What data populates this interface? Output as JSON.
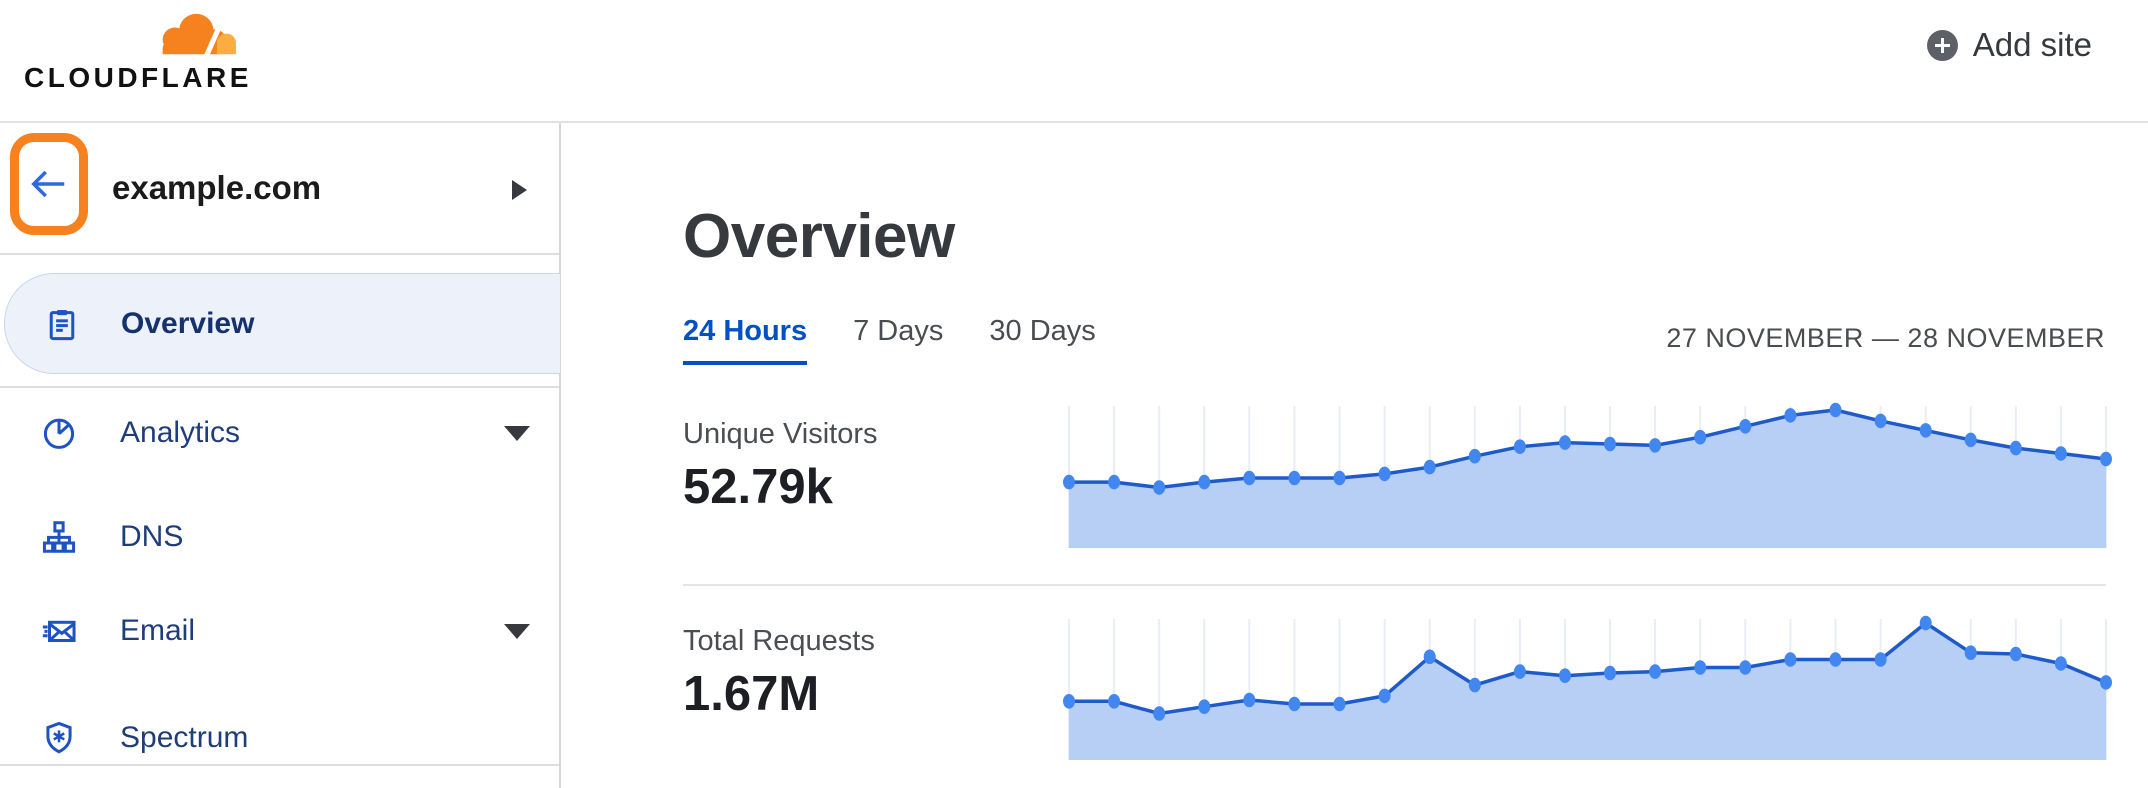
{
  "header": {
    "logo_text": "CLOUDFLARE",
    "add_site_label": "Add site"
  },
  "sidebar": {
    "site_name": "example.com",
    "items": [
      {
        "label": "Overview",
        "icon": "clipboard-icon",
        "selected": true,
        "expandable": false
      },
      {
        "label": "Analytics",
        "icon": "pie-chart-icon",
        "selected": false,
        "expandable": true
      },
      {
        "label": "DNS",
        "icon": "sitemap-icon",
        "selected": false,
        "expandable": false
      },
      {
        "label": "Email",
        "icon": "email-icon",
        "selected": false,
        "expandable": true
      },
      {
        "label": "Spectrum",
        "icon": "shield-icon",
        "selected": false,
        "expandable": false
      }
    ]
  },
  "main": {
    "title": "Overview",
    "tabs": [
      {
        "label": "24 Hours",
        "active": true
      },
      {
        "label": "7 Days",
        "active": false
      },
      {
        "label": "30 Days",
        "active": false
      }
    ],
    "date_range": "27 NOVEMBER — 28 NOVEMBER",
    "metrics": [
      {
        "label": "Unique Visitors",
        "value": "52.79k"
      },
      {
        "label": "Total Requests",
        "value": "1.67M"
      }
    ]
  },
  "colors": {
    "brand_orange": "#f6821f",
    "brand_orange_light": "#fbad41",
    "link_blue": "#0051c3",
    "nav_text": "#1f3d7a",
    "nav_text_selected": "#15316e",
    "nav_icon_blue": "#1d54c1",
    "selected_pill_bg": "#ecf1fa",
    "selected_pill_border": "#c7d7f3",
    "heading_gray": "#36393d",
    "label_gray": "#4a4d52",
    "value_black": "#1d1f24",
    "divider": "#e2e2e2"
  },
  "chart_data": [
    {
      "type": "area",
      "title": "Unique Visitors",
      "total_label": "52.79k",
      "x_axis": "hours over 24 Hours view (27 November — 28 November)",
      "x": [
        0,
        1,
        2,
        3,
        4,
        5,
        6,
        7,
        8,
        9,
        10,
        11,
        12,
        13,
        14,
        15,
        16,
        17,
        18,
        19,
        20,
        21,
        22,
        23
      ],
      "values_relative": [
        47,
        47,
        43,
        47,
        50,
        50,
        50,
        53,
        58,
        66,
        73,
        76,
        75,
        74,
        80,
        88,
        96,
        100,
        92,
        85,
        78,
        72,
        68,
        64
      ],
      "value_scale": "relative height, 100 = series peak (no y-axis labels shown)",
      "grid": "vertical gridline per point",
      "line_color": "#1f5bc8",
      "point_color": "#4286f0",
      "fill_color": "#b7cef5",
      "gridline_color": "#e9edf5"
    },
    {
      "type": "area",
      "title": "Total Requests",
      "total_label": "1.67M",
      "x_axis": "hours over 24 Hours view (27 November — 28 November)",
      "x": [
        0,
        1,
        2,
        3,
        4,
        5,
        6,
        7,
        8,
        9,
        10,
        11,
        12,
        13,
        14,
        15,
        16,
        17,
        18,
        19,
        20,
        21,
        22,
        23
      ],
      "values_relative": [
        42,
        42,
        33,
        38,
        43,
        40,
        40,
        46,
        75,
        54,
        64,
        61,
        63,
        64,
        67,
        67,
        73,
        73,
        73,
        100,
        78,
        77,
        70,
        56
      ],
      "value_scale": "relative height, 100 = series peak (no y-axis labels shown)",
      "grid": "vertical gridline per point",
      "line_color": "#1f5bc8",
      "point_color": "#4286f0",
      "fill_color": "#b7cef5",
      "gridline_color": "#e9edf5"
    }
  ]
}
